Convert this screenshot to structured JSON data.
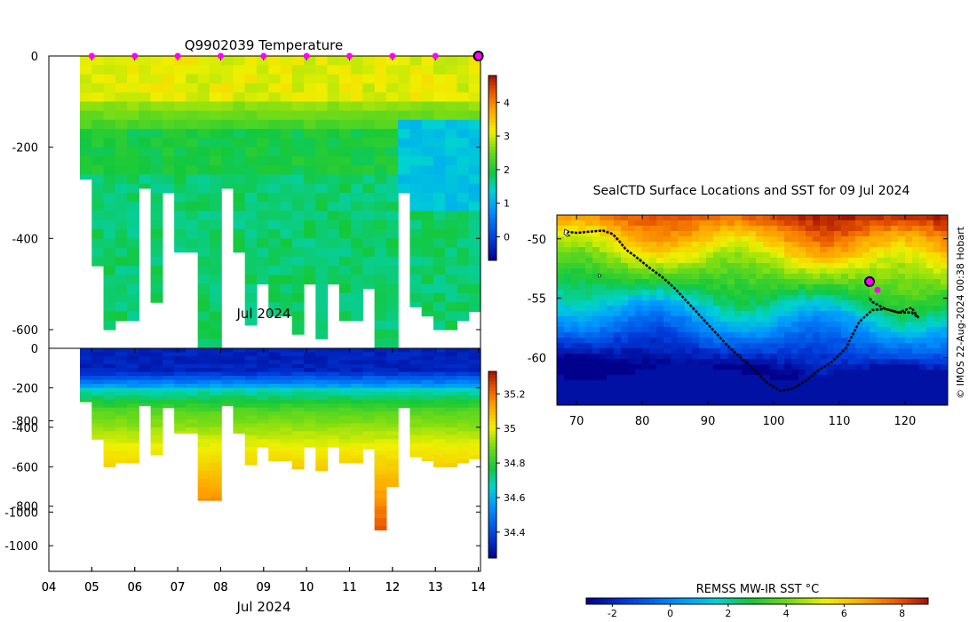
{
  "chart_data": [
    {
      "type": "heatmap",
      "title": "Q9902039  Temperature",
      "xlabel": "Jul 2024",
      "ylabel": "",
      "x_ticks": [
        "04",
        "05",
        "06",
        "07",
        "08",
        "09",
        "10",
        "11",
        "12",
        "13",
        "14"
      ],
      "xlim": [
        4,
        14.05
      ],
      "y_ticks": [
        0,
        -200,
        -400,
        -600,
        -800,
        -1000
      ],
      "ylim": [
        -1130,
        0
      ],
      "colorbar_ticks": [
        0,
        1,
        2,
        3,
        4
      ],
      "colorbar_range": [
        -0.7,
        4.8
      ],
      "surface_markers_day": [
        5,
        6,
        7,
        8,
        9,
        10,
        11,
        12,
        13
      ],
      "current_marker_day": 14,
      "profile_depths": [
        270,
        460,
        600,
        580,
        580,
        290,
        540,
        300,
        430,
        430,
        770,
        770,
        290,
        430,
        590,
        500,
        570,
        570,
        610,
        500,
        620,
        500,
        580,
        580,
        510,
        920,
        700,
        300,
        550,
        570,
        600,
        600,
        580,
        560
      ]
    },
    {
      "type": "heatmap",
      "title": "",
      "xlabel": "Jul 2024",
      "ylabel": "",
      "x_ticks": [
        "04",
        "05",
        "06",
        "07",
        "08",
        "09",
        "10",
        "11",
        "12",
        "13",
        "14"
      ],
      "xlim": [
        4,
        14.05
      ],
      "y_ticks": [
        0,
        -200,
        -400,
        -600,
        -800,
        -1000
      ],
      "ylim": [
        -1130,
        0
      ],
      "colorbar_ticks": [
        34.4,
        34.6,
        34.8,
        35,
        35.2
      ],
      "colorbar_range": [
        34.25,
        35.33
      ],
      "profile_depths": [
        270,
        460,
        600,
        580,
        580,
        290,
        540,
        300,
        430,
        430,
        770,
        770,
        290,
        430,
        590,
        500,
        570,
        570,
        610,
        500,
        620,
        500,
        580,
        580,
        510,
        920,
        700,
        300,
        550,
        570,
        600,
        600,
        580,
        560
      ]
    },
    {
      "type": "heatmap",
      "title": "SealCTD Surface Locations and SST for 09 Jul 2024",
      "xlabel": "",
      "ylabel": "",
      "x_ticks": [
        70,
        80,
        90,
        100,
        110,
        120
      ],
      "xlim": [
        67,
        126.5
      ],
      "y_ticks": [
        -50,
        -55,
        -60
      ],
      "ylim": [
        -64,
        -48
      ],
      "colorbar_label": "REMSS MW-IR SST °C",
      "colorbar_ticks": [
        -2,
        0,
        2,
        4,
        6,
        8
      ],
      "colorbar_range": [
        -2.9,
        8.9
      ],
      "track_lon": [
        68.5,
        70,
        72,
        74,
        75.5,
        76.5,
        77.5,
        79,
        81,
        83,
        85,
        87,
        89,
        91,
        93,
        95,
        97,
        99,
        101,
        103,
        105,
        107,
        109,
        111,
        112,
        113,
        115,
        117,
        119,
        121,
        122,
        121,
        119,
        117,
        115,
        114.5
      ],
      "track_lat": [
        -49.4,
        -49.5,
        -49.4,
        -49.3,
        -49.6,
        -50.2,
        -50.9,
        -51.5,
        -52.4,
        -53.2,
        -54.2,
        -55.4,
        -56.6,
        -57.8,
        -59,
        -60,
        -61,
        -62.1,
        -62.8,
        -62.6,
        -61.9,
        -61,
        -60.3,
        -59.2,
        -58.1,
        -57,
        -56,
        -55.9,
        -56.2,
        -56.2,
        -56.6,
        -55.8,
        -56.2,
        -55.9,
        -55.3,
        -54.9
      ],
      "current_position": {
        "lon": 114.6,
        "lat": -53.6
      },
      "seal_marker": {
        "lon": 115.8,
        "lat": -54.3
      }
    }
  ],
  "credit_text": "© IMOS 22-Aug-2024 00:38 Hobart",
  "colors": {
    "marker_magenta": "#ff00ff",
    "marker_outline": "#000000",
    "track": "#000000"
  }
}
